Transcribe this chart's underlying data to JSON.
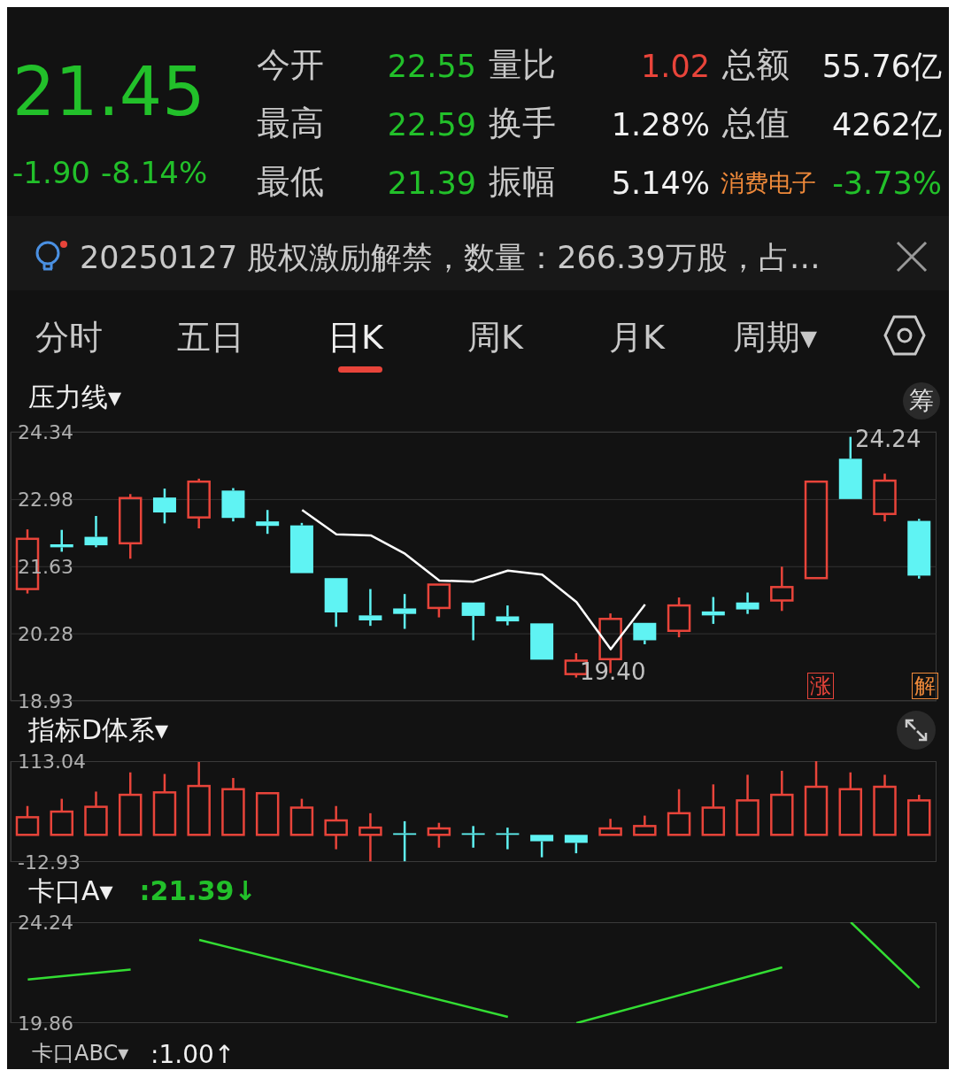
{
  "chart_data": [
    {
      "type": "other",
      "annotations": [
        "21.45",
        "-1.90",
        "-8.14%",
        "今开",
        "22.55",
        "量比",
        "1.02",
        "总额",
        "55.76亿",
        "最高",
        "22.59",
        "换手",
        "1.28%",
        "总值",
        "4262亿",
        "最低",
        "21.39",
        "振幅",
        "5.14%",
        "消费电子",
        "-3.73%",
        "20250127 股权激励解禁，数量：266.39万股，占…",
        "分时",
        "五日",
        "日K",
        "周K",
        "月K",
        "周期▾"
      ]
    },
    {
      "type": "candlestick",
      "title": "压力线▾",
      "tick_labels": "y",
      "grid": "y",
      "categories": [
        null,
        null,
        null,
        null,
        null,
        null,
        null,
        null,
        null,
        null,
        null,
        null,
        null,
        null,
        null,
        null,
        null,
        null,
        null,
        null,
        null,
        null,
        null,
        null,
        null,
        null,
        null
      ],
      "ohlc": [
        [
          21.18,
          22.38,
          21.09,
          22.19
        ],
        [
          22.08,
          22.37,
          21.93,
          22.02
        ],
        [
          22.23,
          22.65,
          22.02,
          22.06
        ],
        [
          22.1,
          23.09,
          21.79,
          23.01
        ],
        [
          23.02,
          23.2,
          22.5,
          22.72
        ],
        [
          22.62,
          23.4,
          22.4,
          23.34
        ],
        [
          23.16,
          23.21,
          22.54,
          22.61
        ],
        [
          22.54,
          22.77,
          22.29,
          22.45
        ],
        [
          22.46,
          22.51,
          21.5,
          21.5
        ],
        [
          21.4,
          21.41,
          20.42,
          20.71
        ],
        [
          20.65,
          21.18,
          20.44,
          20.55
        ],
        [
          20.79,
          21.08,
          20.38,
          20.68
        ],
        [
          20.8,
          21.28,
          20.61,
          21.27
        ],
        [
          20.91,
          20.92,
          20.15,
          20.64
        ],
        [
          20.63,
          20.85,
          20.45,
          20.53
        ],
        [
          20.49,
          20.51,
          19.74,
          19.76
        ],
        [
          19.47,
          19.89,
          19.4,
          19.74
        ],
        [
          19.77,
          20.69,
          19.49,
          20.58
        ],
        [
          20.5,
          20.52,
          20.07,
          20.15
        ],
        [
          20.34,
          21.01,
          20.21,
          20.85
        ],
        [
          20.73,
          21.02,
          20.48,
          20.65
        ],
        [
          20.91,
          21.11,
          20.68,
          20.77
        ],
        [
          20.95,
          21.63,
          20.74,
          21.22
        ],
        [
          21.4,
          23.34,
          21.4,
          23.34
        ],
        [
          23.8,
          24.24,
          22.97,
          22.99
        ],
        [
          22.69,
          23.5,
          22.54,
          23.36
        ],
        [
          22.55,
          22.59,
          21.39,
          21.45
        ]
      ],
      "colors": [
        "#e8443a",
        "#5ff3f3",
        "#5ff3f3",
        "#e8443a",
        "#5ff3f3",
        "#e8443a",
        "#5ff3f3",
        "#5ff3f3",
        "#5ff3f3",
        "#5ff3f3",
        "#5ff3f3",
        "#5ff3f3",
        "#e8443a",
        "#5ff3f3",
        "#5ff3f3",
        "#5ff3f3",
        "#e8443a",
        "#e8443a",
        "#5ff3f3",
        "#e8443a",
        "#5ff3f3",
        "#5ff3f3",
        "#e8443a",
        "#e8443a",
        "#5ff3f3",
        "#e8443a",
        "#5ff3f3"
      ],
      "series": [
        {
          "type": "line",
          "color": "#ffffff",
          "values": [
            null,
            null,
            null,
            null,
            null,
            null,
            null,
            null,
            22.77,
            22.28,
            22.26,
            21.89,
            21.35,
            21.33,
            21.55,
            21.47,
            20.92,
            19.97,
            20.87,
            null,
            null,
            null,
            null,
            null,
            null,
            null,
            null
          ]
        }
      ],
      "ylim": [
        18.93,
        24.34
      ],
      "yticks": [
        18.93,
        20.28,
        21.63,
        22.98,
        24.34
      ],
      "annotations": [
        "24.24",
        "19.40",
        "筹",
        "涨",
        "解"
      ]
    },
    {
      "type": "candlestick",
      "title": "指标D体系▾",
      "tick_labels": "y",
      "categories": [
        null,
        null,
        null,
        null,
        null,
        null,
        null,
        null,
        null,
        null,
        null,
        null,
        null,
        null,
        null,
        null,
        null,
        null,
        null,
        null,
        null,
        null,
        null,
        null,
        null,
        null,
        null
      ],
      "ohlc": [
        [
          21,
          57,
          21,
          43
        ],
        [
          21,
          66,
          21,
          50
        ],
        [
          21,
          75,
          21,
          56
        ],
        [
          21,
          99,
          21,
          71
        ],
        [
          21,
          97,
          21,
          74
        ],
        [
          21,
          112,
          21,
          82
        ],
        [
          21,
          92,
          21,
          78
        ],
        [
          21,
          73,
          21,
          73
        ],
        [
          21,
          66,
          21,
          55
        ],
        [
          21,
          57,
          3,
          39
        ],
        [
          21,
          48,
          -12,
          30
        ],
        [
          23,
          38,
          -12,
          21
        ],
        [
          21,
          36,
          5,
          29
        ],
        [
          23,
          32,
          5,
          21
        ],
        [
          23,
          30,
          3,
          21
        ],
        [
          21,
          21,
          -7,
          13
        ],
        [
          21,
          21,
          -2,
          11
        ],
        [
          21,
          41,
          21,
          29
        ],
        [
          21,
          45,
          21,
          32
        ],
        [
          21,
          78,
          21,
          48
        ],
        [
          21,
          84,
          21,
          55
        ],
        [
          21,
          96,
          21,
          64
        ],
        [
          21,
          101,
          21,
          71
        ],
        [
          21,
          113,
          21,
          81
        ],
        [
          21,
          99,
          21,
          78
        ],
        [
          21,
          96,
          21,
          81
        ],
        [
          21,
          71,
          21,
          64
        ]
      ],
      "colors": [
        "#e8443a",
        "#e8443a",
        "#e8443a",
        "#e8443a",
        "#e8443a",
        "#e8443a",
        "#e8443a",
        "#e8443a",
        "#e8443a",
        "#e8443a",
        "#e8443a",
        "#5ff3f3",
        "#e8443a",
        "#5ff3f3",
        "#5ff3f3",
        "#5ff3f3",
        "#5ff3f3",
        "#e8443a",
        "#e8443a",
        "#e8443a",
        "#e8443a",
        "#e8443a",
        "#e8443a",
        "#e8443a",
        "#e8443a",
        "#e8443a",
        "#e8443a"
      ],
      "ylim": [
        -12.93,
        113.04
      ],
      "yticks": [
        -12.93,
        113.04
      ]
    },
    {
      "type": "line",
      "title": "卡口A▾",
      "subtitle": ":21.39↓",
      "tick_labels": "y",
      "categories": [
        null,
        null,
        null,
        null,
        null,
        null,
        null,
        null,
        null,
        null,
        null,
        null,
        null,
        null,
        null,
        null,
        null,
        null,
        null,
        null,
        null,
        null,
        null,
        null,
        null,
        null,
        null
      ],
      "series": [
        {
          "color": "#33dd33",
          "values": [
            21.75,
            null,
            null,
            22.18,
            null,
            null,
            null,
            null,
            null,
            null,
            null,
            null,
            null,
            null,
            null,
            null,
            null,
            null,
            null,
            null,
            null,
            null,
            null,
            null,
            null,
            null,
            null
          ]
        },
        {
          "color": "#33dd33",
          "values": [
            null,
            null,
            null,
            null,
            null,
            23.47,
            null,
            null,
            null,
            null,
            null,
            null,
            null,
            null,
            20.13,
            null,
            null,
            null,
            null,
            null,
            null,
            null,
            null,
            null,
            null,
            null,
            null
          ]
        },
        {
          "color": "#33dd33",
          "values": [
            null,
            null,
            null,
            null,
            null,
            null,
            null,
            null,
            null,
            null,
            null,
            null,
            null,
            null,
            null,
            null,
            19.86,
            null,
            null,
            null,
            null,
            null,
            22.28,
            null,
            null,
            null,
            null
          ]
        },
        {
          "color": "#33dd33",
          "values": [
            null,
            null,
            null,
            null,
            null,
            null,
            null,
            null,
            null,
            null,
            null,
            null,
            null,
            null,
            null,
            null,
            null,
            null,
            null,
            null,
            null,
            null,
            null,
            null,
            24.24,
            null,
            21.39
          ]
        }
      ],
      "ylim": [
        19.86,
        24.24
      ],
      "yticks": [
        19.86,
        24.24
      ],
      "annotations": [
        "卡口ABC▾",
        ":1.00↑"
      ]
    }
  ]
}
